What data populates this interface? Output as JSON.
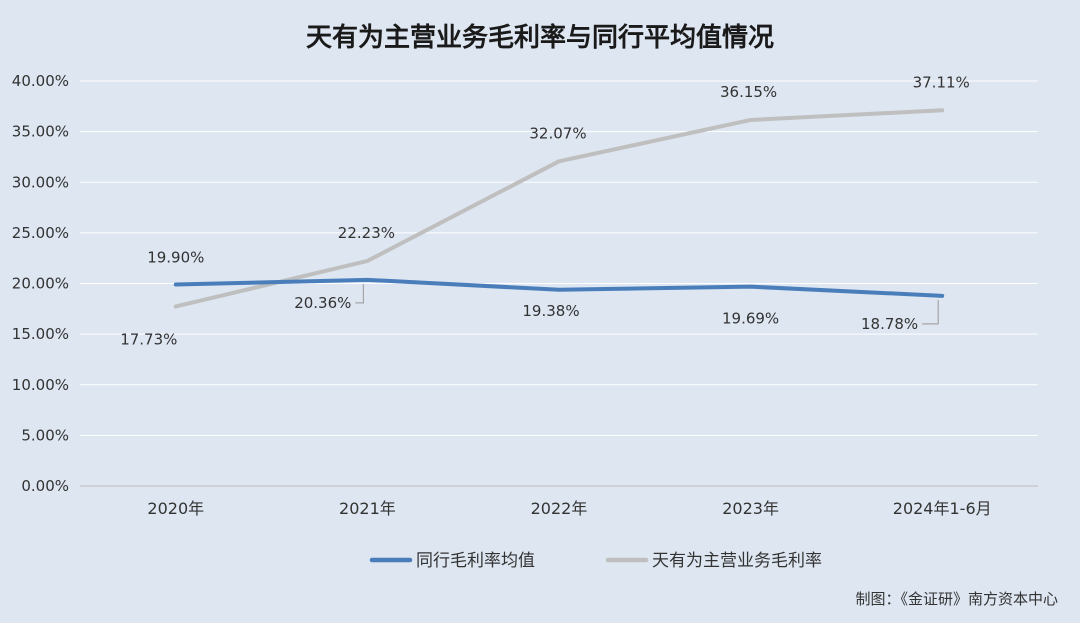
{
  "chart_data": {
    "type": "line",
    "title": "天有为主营业务毛利率与同行平均值情况",
    "categories": [
      "2020年",
      "2021年",
      "2022年",
      "2023年",
      "2024年1-6月"
    ],
    "ylim": [
      0,
      40
    ],
    "y_ticks": [
      "0.00%",
      "5.00%",
      "10.00%",
      "15.00%",
      "20.00%",
      "25.00%",
      "30.00%",
      "35.00%",
      "40.00%"
    ],
    "grid": true,
    "legend_position": "bottom",
    "series": [
      {
        "name": "同行毛利率均值",
        "color": "#4a7ebb",
        "values": [
          19.9,
          20.36,
          19.38,
          19.69,
          18.78
        ],
        "labels": [
          "19.90%",
          "20.36%",
          "19.38%",
          "19.69%",
          "18.78%"
        ]
      },
      {
        "name": "天有为主营业务毛利率",
        "color": "#bfbfbf",
        "values": [
          17.73,
          22.23,
          32.07,
          36.15,
          37.11
        ],
        "labels": [
          "17.73%",
          "22.23%",
          "32.07%",
          "36.15%",
          "37.11%"
        ]
      }
    ],
    "source": "制图：《金证研》南方资本中心"
  }
}
